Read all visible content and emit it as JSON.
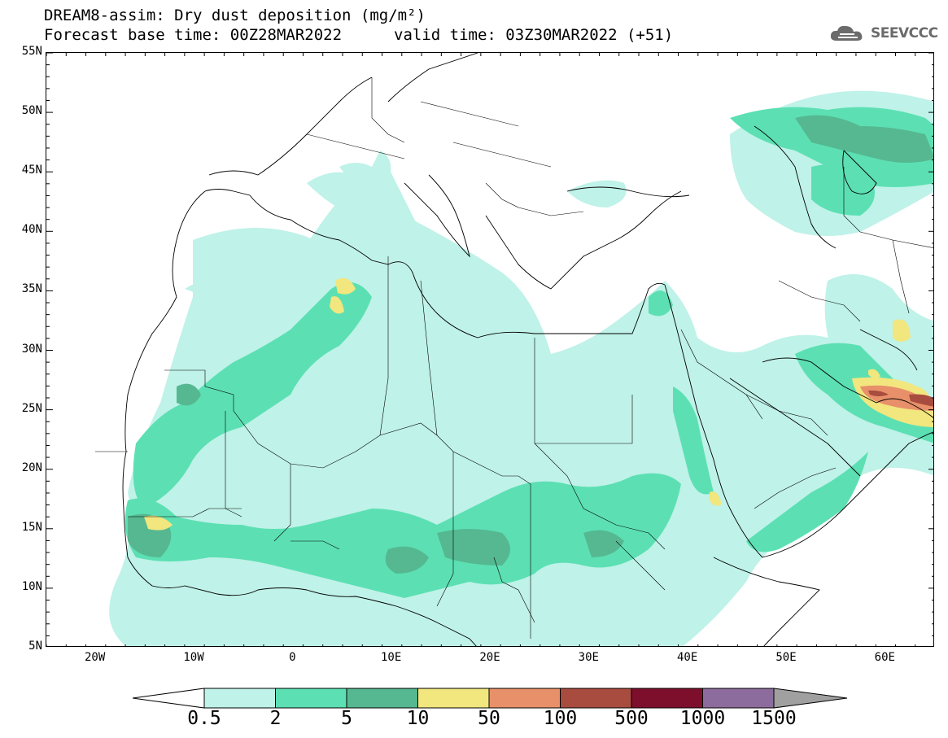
{
  "header": {
    "title_line1": "DREAM8-assim: Dry dust deposition (mg/m²)",
    "title_line2": "Forecast base time: 00Z28MAR2022",
    "valid_time": "valid time: 03Z30MAR2022 (+51)",
    "logo_text": "SEEVCCC",
    "logo_icon": "cloud-logo-icon"
  },
  "map": {
    "lat_labels": [
      "55N",
      "50N",
      "45N",
      "40N",
      "35N",
      "30N",
      "25N",
      "20N",
      "15N",
      "10N",
      "5N"
    ],
    "lon_labels": [
      "20W",
      "10W",
      "0",
      "10E",
      "20E",
      "30E",
      "40E",
      "50E",
      "60E"
    ],
    "extent": {
      "lon_min": -25,
      "lon_max": 65,
      "lat_min": 5,
      "lat_max": 55
    }
  },
  "legend": {
    "labels": [
      "0.5",
      "2",
      "5",
      "10",
      "50",
      "100",
      "500",
      "1000",
      "1500"
    ],
    "colors": [
      "#bff2e8",
      "#5ce0b3",
      "#55b891",
      "#f2e67e",
      "#e8906a",
      "#a84c3f",
      "#7d0f2c",
      "#8c6c9c",
      "#a0a0a0"
    ],
    "units": "mg/m²"
  }
}
